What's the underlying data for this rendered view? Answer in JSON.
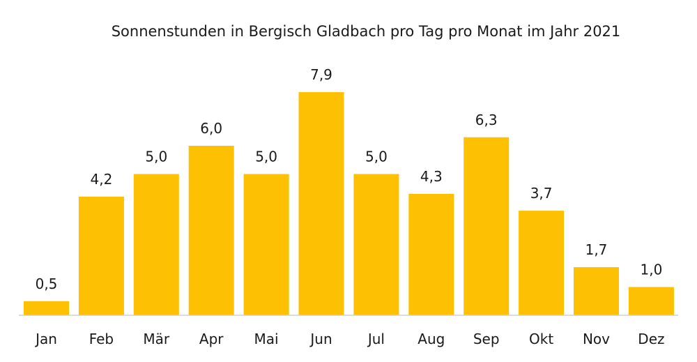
{
  "chart_data": {
    "type": "bar",
    "title": "Sonnenstunden in Bergisch Gladbach pro Tag pro Monat im Jahr 2021",
    "xlabel": "",
    "ylabel": "",
    "categories": [
      "Jan",
      "Feb",
      "Mär",
      "Apr",
      "Mai",
      "Jun",
      "Jul",
      "Aug",
      "Sep",
      "Okt",
      "Nov",
      "Dez"
    ],
    "values": [
      0.5,
      4.2,
      5.0,
      6.0,
      5.0,
      7.9,
      5.0,
      4.3,
      6.3,
      3.7,
      1.7,
      1.0
    ],
    "value_labels": [
      "0,5",
      "4,2",
      "5,0",
      "6,0",
      "5,0",
      "7,9",
      "5,0",
      "4,3",
      "6,3",
      "3,7",
      "1,7",
      "1,0"
    ],
    "ylim": [
      0,
      8
    ],
    "grid": false,
    "legend": "none",
    "bar_color": "#FDC002"
  }
}
